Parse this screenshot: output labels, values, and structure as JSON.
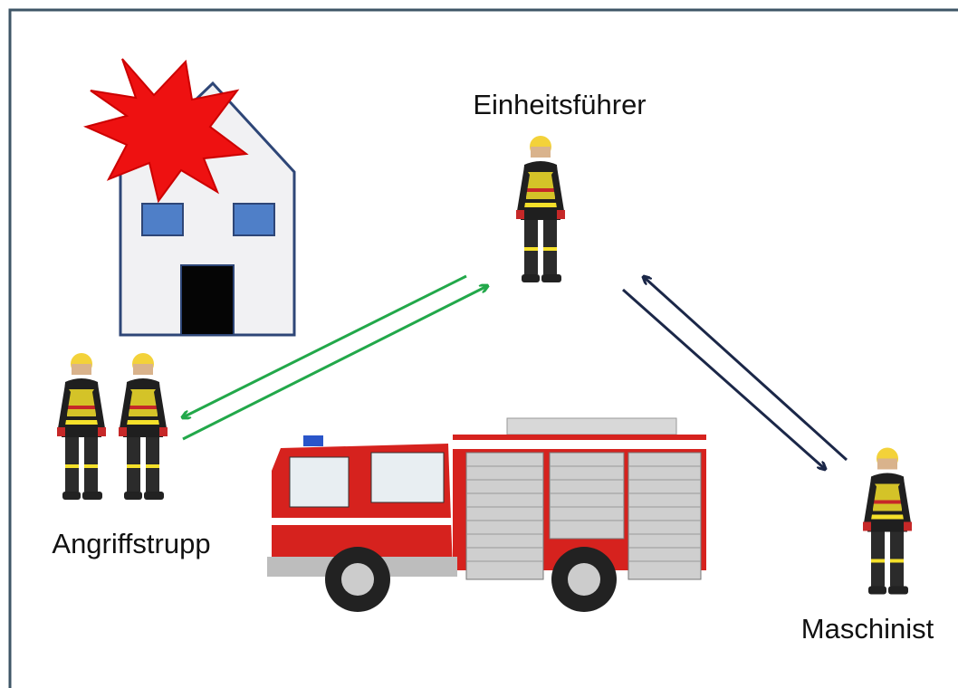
{
  "nodes": [
    {
      "label": "Einheitsführer"
    },
    {
      "label": "Angriffstrupp"
    },
    {
      "label": "Maschinist"
    }
  ]
}
